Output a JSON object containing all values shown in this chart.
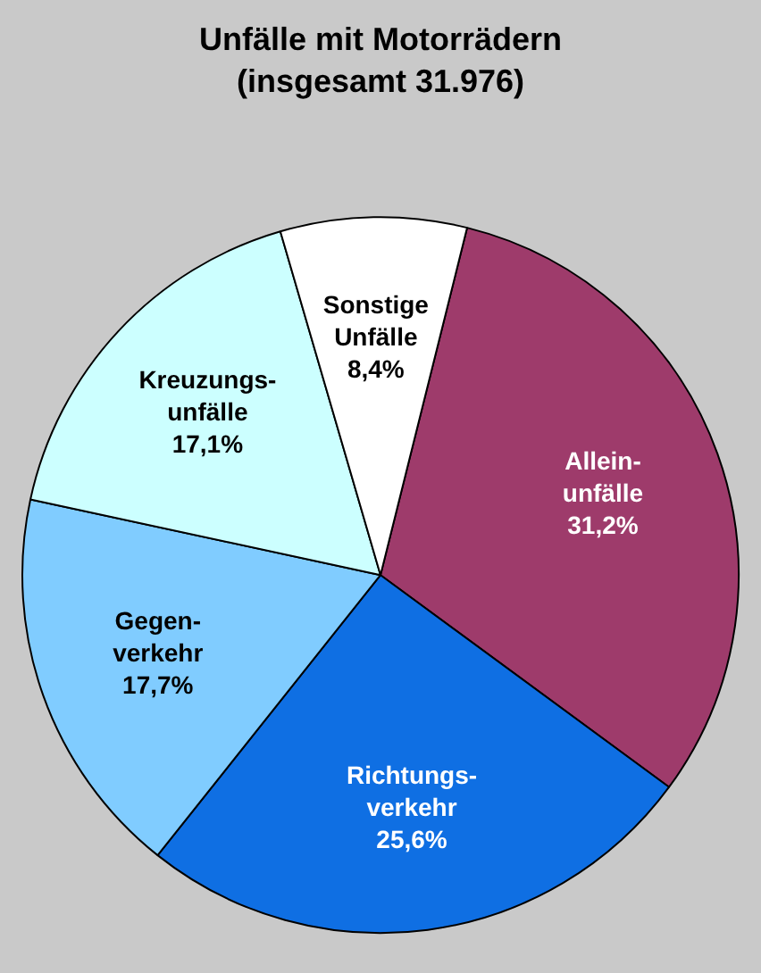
{
  "chart_data": {
    "type": "pie",
    "title": "Unfälle mit Motorrädern",
    "subtitle": "(insgesamt 31.976)",
    "categories": [
      "Allein-unfälle",
      "Richtungs-verkehr",
      "Gegen-verkehr",
      "Kreuzungs-unfälle",
      "Sonstige Unfälle"
    ],
    "values": [
      31.2,
      25.6,
      17.7,
      17.1,
      8.4
    ],
    "colors": [
      "#9e3b6b",
      "#0f6fe3",
      "#80ccff",
      "#ccffff",
      "#ffffff"
    ],
    "value_labels": [
      "31,2%",
      "25,6%",
      "17,7%",
      "17,1%",
      "8,4%"
    ],
    "legend": false
  }
}
